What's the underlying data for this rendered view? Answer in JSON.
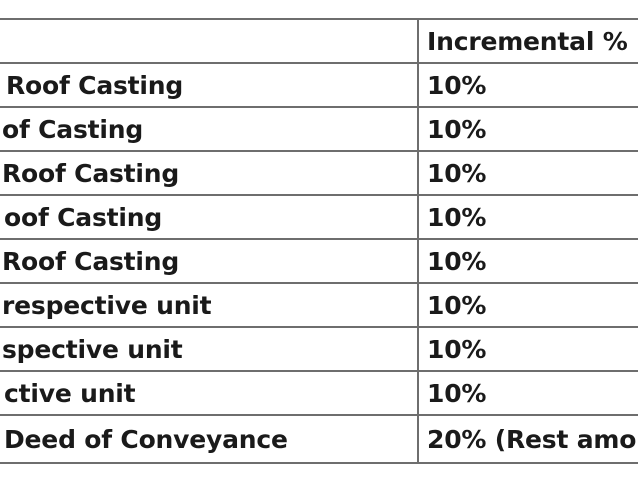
{
  "table": {
    "header": {
      "col1": "",
      "col2": "Incremental %"
    },
    "rows": [
      {
        "stage": "Roof Casting",
        "pct": "10%"
      },
      {
        "stage": "of Casting",
        "pct": "10%"
      },
      {
        "stage": "Roof Casting",
        "pct": "10%"
      },
      {
        "stage": "oof Casting",
        "pct": "10%"
      },
      {
        "stage": "Roof Casting",
        "pct": "10%"
      },
      {
        "stage": "respective unit",
        "pct": "10%"
      },
      {
        "stage": "spective unit",
        "pct": "10%"
      },
      {
        "stage": "ctive unit",
        "pct": "10%"
      },
      {
        "stage": "Deed of Conveyance",
        "pct": "20% (Rest amou"
      }
    ]
  }
}
